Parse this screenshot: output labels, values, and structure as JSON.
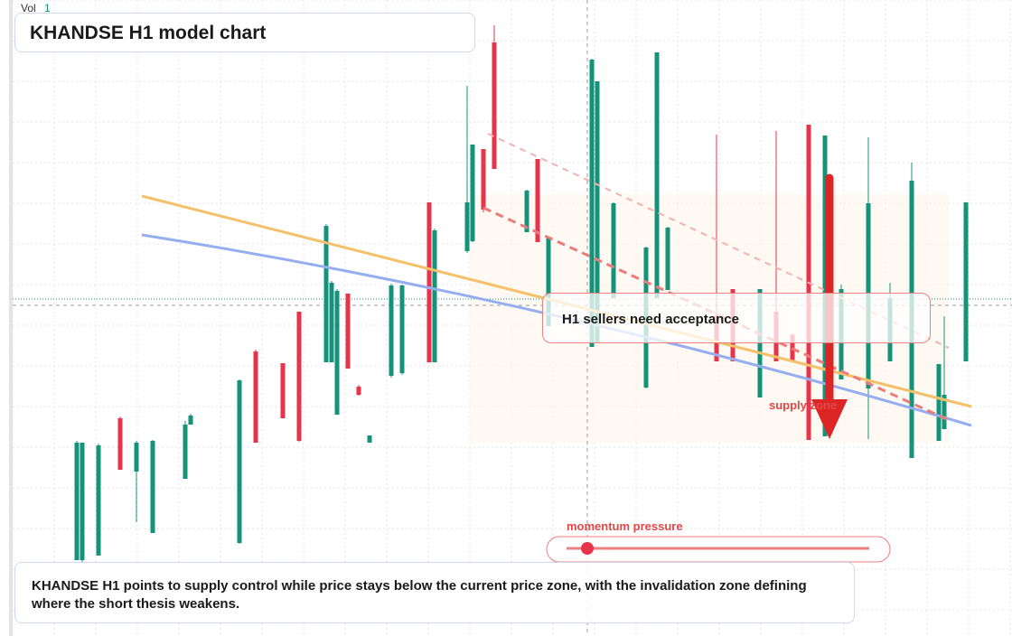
{
  "header": {
    "vol_label": "Vol",
    "vol_value": "1",
    "title": "KHANDSE H1 model chart"
  },
  "chart_data": {
    "type": "candlestick",
    "x": [
      12,
      13,
      16,
      20,
      23,
      26,
      32,
      33,
      42,
      45,
      50,
      53,
      58,
      59,
      60,
      62,
      64,
      66,
      70,
      72,
      77,
      78,
      84,
      85,
      87,
      89,
      95,
      97,
      99,
      107,
      108,
      111,
      117,
      119,
      121,
      130,
      133,
      138,
      141,
      144,
      147,
      150,
      153,
      158,
      162,
      166,
      171,
      172,
      176
    ],
    "open": [
      38,
      38,
      38.5,
      53.7,
      47.8,
      41,
      47,
      53,
      39.9,
      61.1,
      59.8,
      65.5,
      59.9,
      59.9,
      54.1,
      67.5,
      57.2,
      51,
      58.4,
      58.7,
      77.6,
      59.9,
      72.2,
      73.3,
      83.5,
      95.3,
      74.3,
      82.4,
      63.9,
      61.6,
      62,
      67,
      57.1,
      67,
      67.9,
      65.1,
      68,
      56,
      65.5,
      63,
      86.2,
      51.7,
      58,
      57,
      60,
      49.3,
      51.2,
      52.5,
      60
    ],
    "high": [
      51.2,
      51,
      50.9,
      53.9,
      51.2,
      51.3,
      53.4,
      54.2,
      58,
      61.3,
      59.8,
      65.5,
      75.2,
      68.9,
      68,
      67.5,
      57.4,
      51.8,
      68.6,
      68.5,
      77.6,
      74.7,
      90.5,
      84,
      83.5,
      97.2,
      79,
      82.4,
      73.7,
      93.5,
      91,
      77.6,
      72.7,
      94.2,
      74.9,
      85.1,
      68,
      68,
      85.5,
      63,
      86.2,
      85,
      68.5,
      84.8,
      68.7,
      82,
      59.7,
      65,
      77.6
    ],
    "low": [
      38,
      37.8,
      38.5,
      48,
      42.2,
      41,
      47,
      53,
      39.8,
      51,
      53.7,
      51.1,
      59.9,
      59.9,
      54.1,
      59.2,
      56.2,
      51,
      58.2,
      58.5,
      59.9,
      59.9,
      72,
      73.2,
      76.5,
      81.3,
      74.3,
      73.2,
      63.9,
      61.6,
      62,
      67,
      57,
      67,
      67.9,
      60,
      60,
      56,
      60,
      60,
      51.3,
      51.7,
      58,
      51.4,
      60,
      49.3,
      51.2,
      52.5,
      60
    ],
    "close": [
      51,
      51,
      50.7,
      48,
      51,
      51.2,
      53,
      54,
      57.9,
      51,
      53.7,
      51.2,
      75,
      68.7,
      67.8,
      59.2,
      56.3,
      51.8,
      68.4,
      68.4,
      59.9,
      74.5,
      77.6,
      84,
      76.8,
      81.3,
      78.9,
      73.2,
      73.7,
      93.4,
      91,
      77.5,
      72.6,
      94.2,
      74.8,
      60,
      60,
      68,
      60,
      60,
      51.3,
      85,
      68,
      77.5,
      67,
      80,
      59.7,
      56.3,
      77.6
    ],
    "xlim": [
      0,
      184
    ],
    "ylim": [
      30,
      100
    ],
    "up_color": "#14937a",
    "down_color": "#e8344a"
  },
  "annotations": {
    "callout": "H1 sellers need acceptance",
    "zone": "supply zone",
    "momentum": "momentum pressure"
  },
  "note": "KHANDSE H1 points to supply control while price stays below the current price zone, with the invalidation zone defining where the short thesis weakens."
}
